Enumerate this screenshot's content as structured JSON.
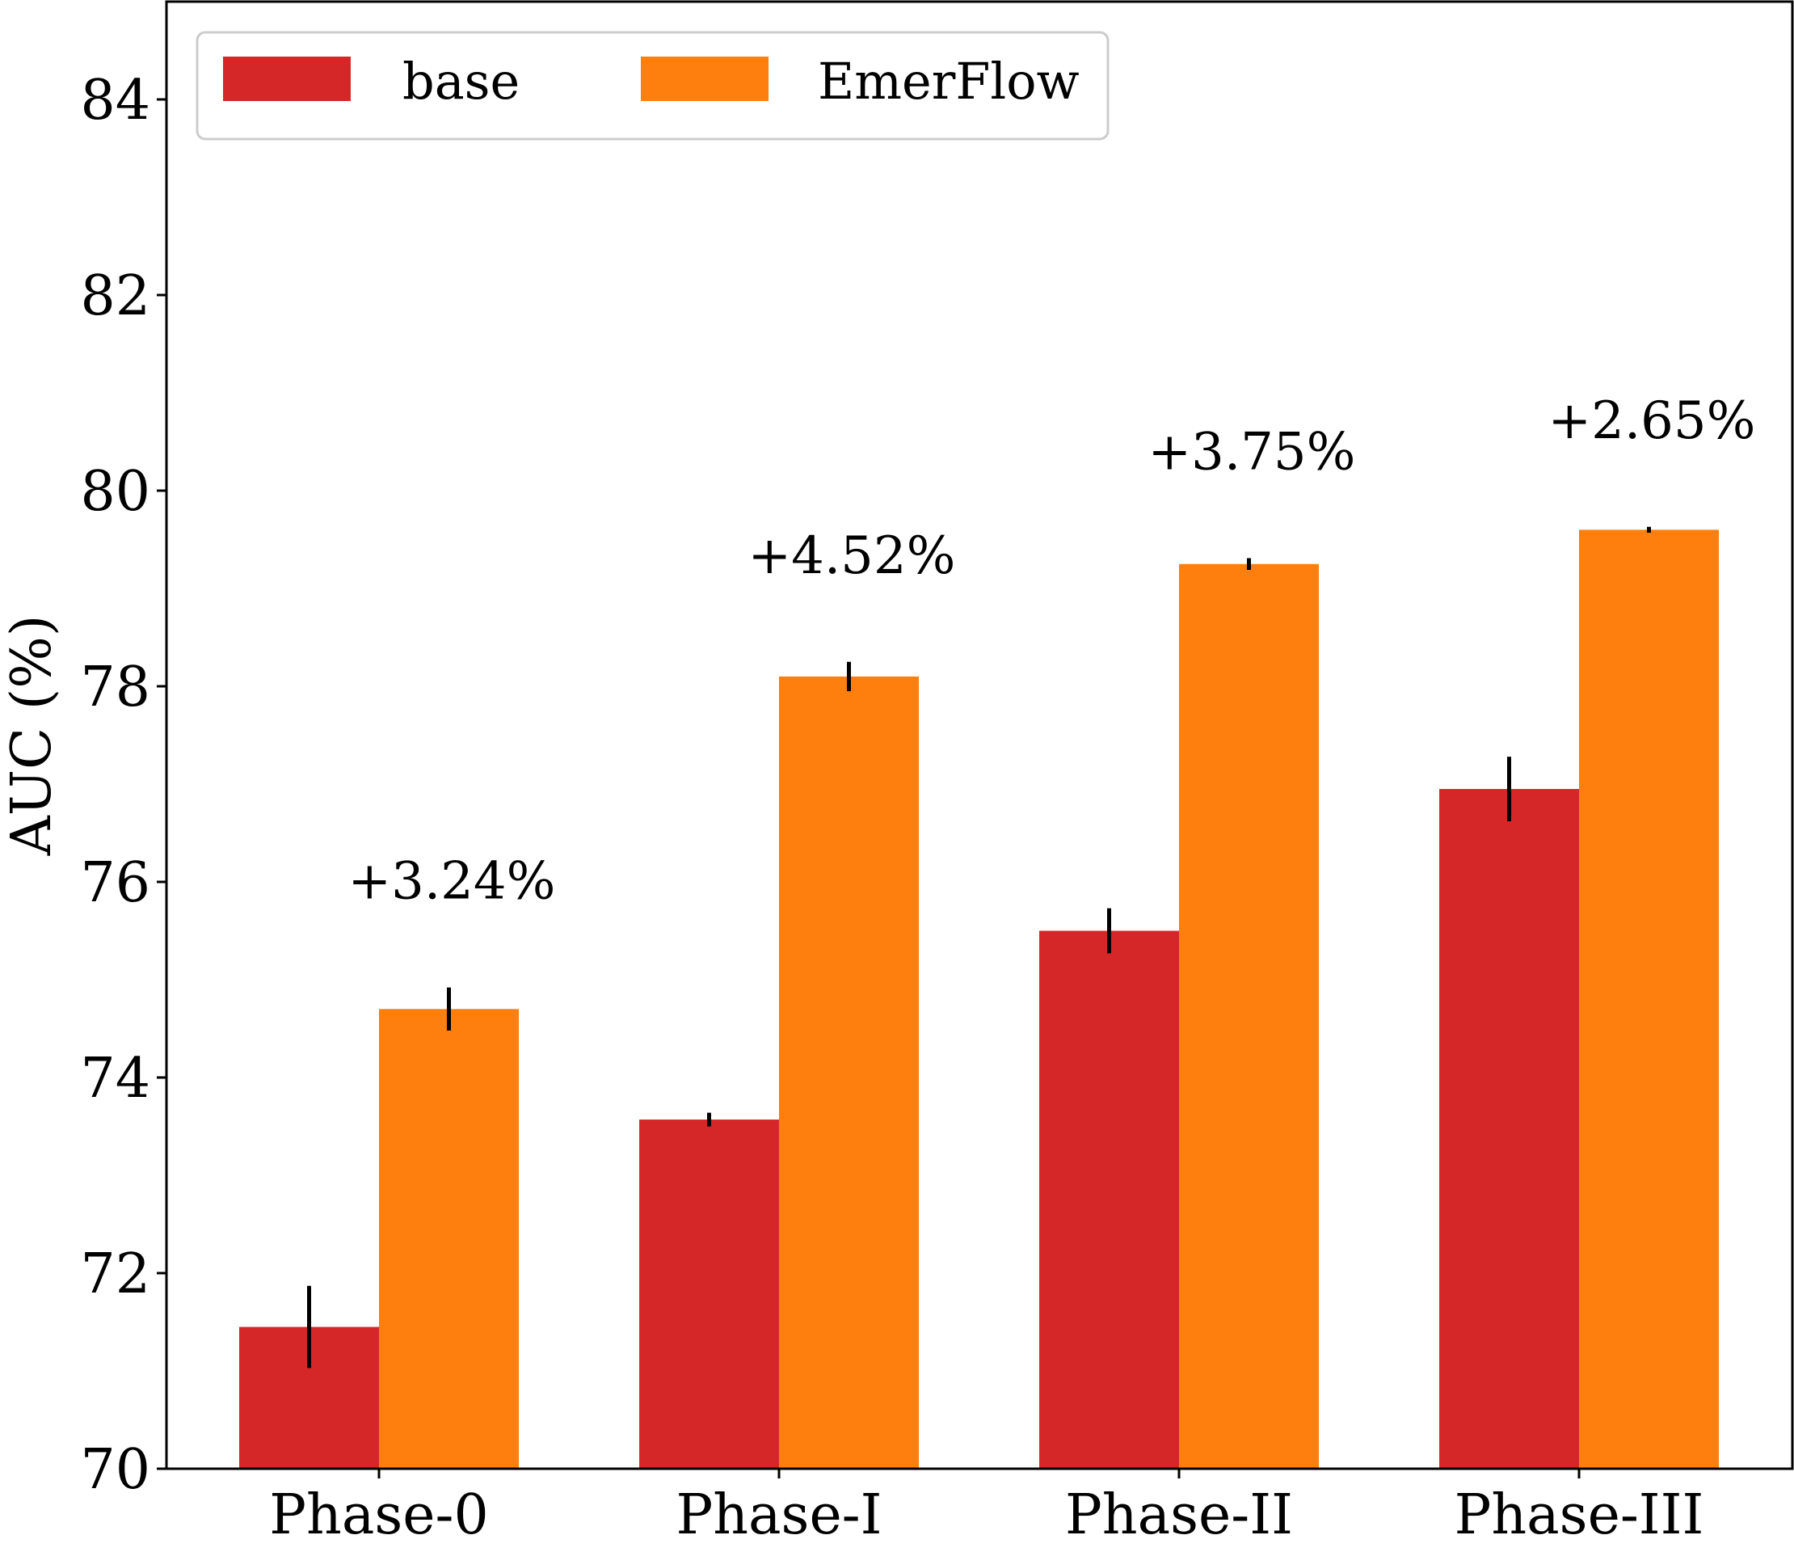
{
  "chart_data": {
    "type": "bar",
    "title": "",
    "xlabel": "",
    "ylabel": "AUC (%)",
    "ylim": [
      70,
      85
    ],
    "yticks": [
      70,
      72,
      74,
      76,
      78,
      80,
      82,
      84
    ],
    "categories": [
      "Phase-0",
      "Phase-I",
      "Phase-II",
      "Phase-III"
    ],
    "series": [
      {
        "name": "base",
        "color": "#d62728",
        "values": [
          71.45,
          73.57,
          75.5,
          76.95
        ],
        "errors": [
          0.42,
          0.07,
          0.23,
          0.33
        ]
      },
      {
        "name": "EmerFlow",
        "color": "#ff7f0e",
        "values": [
          74.7,
          78.1,
          79.25,
          79.6
        ],
        "errors": [
          0.22,
          0.15,
          0.06,
          0.03
        ]
      }
    ],
    "annotations": [
      "+3.24%",
      "+4.52%",
      "+3.75%",
      "+2.65%"
    ],
    "legend": {
      "location": "top-left",
      "entries": [
        "base",
        "EmerFlow"
      ]
    },
    "grid": false,
    "error_bar_color": "#000000"
  }
}
